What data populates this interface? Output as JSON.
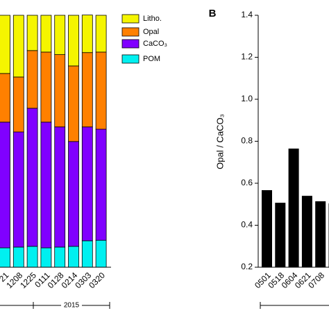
{
  "chart_data": [
    {
      "type": "stacked-bar",
      "group_label": "2015",
      "categories": [
        "21",
        "1208",
        "1225",
        "0111",
        "0128",
        "0214",
        "0303",
        "0320"
      ],
      "ylim": [
        0,
        100
      ],
      "legend": "top-right",
      "series": [
        {
          "name": "POM",
          "color": "#00f0f0",
          "values": [
            7.7,
            8.0,
            8.3,
            7.7,
            8.0,
            8.3,
            10.5,
            10.7
          ]
        },
        {
          "name": "CaCO₃",
          "color": "#8000ff",
          "values": [
            49.9,
            45.7,
            54.8,
            49.9,
            47.7,
            41.6,
            45.2,
            44.1
          ]
        },
        {
          "name": "Opal",
          "color": "#ff8000",
          "values": [
            19.3,
            21.8,
            22.9,
            27.8,
            28.7,
            30.0,
            29.5,
            30.6
          ]
        },
        {
          "name": "Litho.",
          "color": "#f5f500",
          "values": [
            23.1,
            24.5,
            14.0,
            14.6,
            15.6,
            20.1,
            14.9,
            14.6
          ]
        }
      ]
    },
    {
      "type": "bar",
      "panel": "B",
      "y_label": "Opal / CaCO₃",
      "color": "#000000",
      "categories": [
        "0501",
        "0518",
        "0604",
        "0621",
        "0708",
        null
      ],
      "values": [
        0.567,
        0.507,
        0.765,
        0.54,
        0.514,
        0.504
      ],
      "ylim": [
        0.2,
        1.4
      ],
      "yticks": [
        0.2,
        0.4,
        0.6,
        0.8,
        {
          "value": 1,
          "label": "1.0"
        },
        1.2,
        1.4
      ]
    }
  ]
}
